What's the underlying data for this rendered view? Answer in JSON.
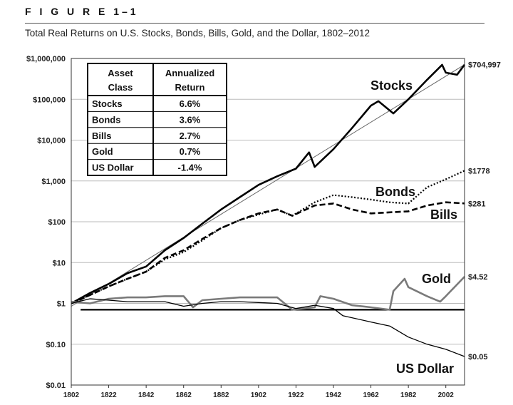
{
  "figure_label": "F I G U R E   1–1",
  "title": "Total Real Returns on U.S. Stocks, Bonds, Bills, Gold, and the Dollar, 1802–2012",
  "chart_data": {
    "type": "line",
    "title": "Total Real Returns on U.S. Stocks, Bonds, Bills, Gold, and the Dollar, 1802–2012",
    "yscale": "log",
    "ylim": [
      0.01,
      1000000
    ],
    "xlim": [
      1802,
      2012
    ],
    "y_ticks": [
      {
        "value": 1000000,
        "label": "$1,000,000"
      },
      {
        "value": 100000,
        "label": "$100,000"
      },
      {
        "value": 10000,
        "label": "$10,000"
      },
      {
        "value": 1000,
        "label": "$1,000"
      },
      {
        "value": 100,
        "label": "$100"
      },
      {
        "value": 10,
        "label": "$10"
      },
      {
        "value": 1,
        "label": "$1"
      },
      {
        "value": 0.1,
        "label": "$0.10"
      },
      {
        "value": 0.01,
        "label": "$0.01"
      }
    ],
    "x_ticks": [
      "1802",
      "1822",
      "1842",
      "1862",
      "1882",
      "1902",
      "1922",
      "1942",
      "1962",
      "1982",
      "2002"
    ],
    "grid": true,
    "table": {
      "headers": [
        "Asset Class",
        "Annualized Return"
      ],
      "rows": [
        [
          "Stocks",
          "6.6%"
        ],
        [
          "Bonds",
          "3.6%"
        ],
        [
          "Bills",
          "2.7%"
        ],
        [
          "Gold",
          "0.7%"
        ],
        [
          "US Dollar",
          "-1.4%"
        ]
      ]
    },
    "series": [
      {
        "name": "Stocks",
        "end_label": "$704,997",
        "style": "thick-solid",
        "x": [
          1802,
          1812,
          1822,
          1832,
          1842,
          1852,
          1862,
          1872,
          1882,
          1892,
          1902,
          1912,
          1922,
          1929,
          1932,
          1942,
          1952,
          1962,
          1966,
          1974,
          1982,
          1992,
          2000,
          2002,
          2008,
          2012
        ],
        "y": [
          1,
          1.8,
          3,
          5.5,
          8,
          20,
          40,
          90,
          200,
          400,
          800,
          1300,
          2000,
          5000,
          2200,
          6000,
          20000,
          70000,
          90000,
          45000,
          100000,
          300000,
          700000,
          450000,
          400000,
          704997
        ]
      },
      {
        "name": "Bonds",
        "end_label": "$1778",
        "style": "dotted",
        "x": [
          1802,
          1812,
          1822,
          1832,
          1842,
          1852,
          1862,
          1872,
          1882,
          1892,
          1902,
          1912,
          1920,
          1932,
          1942,
          1952,
          1962,
          1972,
          1982,
          1992,
          2002,
          2012
        ],
        "y": [
          1,
          1.6,
          2.6,
          4,
          6,
          12,
          18,
          35,
          70,
          110,
          150,
          200,
          140,
          300,
          450,
          400,
          350,
          300,
          280,
          700,
          1100,
          1778
        ]
      },
      {
        "name": "Bills",
        "end_label": "$281",
        "style": "dashed",
        "x": [
          1802,
          1812,
          1822,
          1832,
          1842,
          1852,
          1862,
          1872,
          1882,
          1892,
          1902,
          1912,
          1920,
          1932,
          1942,
          1952,
          1962,
          1972,
          1982,
          1992,
          2002,
          2012
        ],
        "y": [
          1,
          1.6,
          2.6,
          4,
          6,
          13,
          20,
          38,
          70,
          110,
          160,
          200,
          140,
          250,
          280,
          200,
          160,
          170,
          180,
          250,
          300,
          281
        ]
      },
      {
        "name": "Gold",
        "end_label": "$4.52",
        "style": "gray-solid",
        "x": [
          1802,
          1812,
          1822,
          1832,
          1842,
          1852,
          1862,
          1867,
          1872,
          1882,
          1892,
          1902,
          1912,
          1920,
          1932,
          1935,
          1942,
          1952,
          1962,
          1972,
          1974,
          1980,
          1982,
          1992,
          1999,
          2002,
          2012
        ],
        "y": [
          1.1,
          1.0,
          1.3,
          1.4,
          1.4,
          1.5,
          1.5,
          0.8,
          1.2,
          1.3,
          1.4,
          1.4,
          1.4,
          0.7,
          0.8,
          1.5,
          1.3,
          0.9,
          0.8,
          0.7,
          2,
          4,
          2.5,
          1.5,
          1.1,
          1.5,
          4.52
        ]
      },
      {
        "name": "US Dollar",
        "end_label": "$0.05",
        "style": "thin-solid",
        "x": [
          1802,
          1812,
          1822,
          1832,
          1842,
          1852,
          1862,
          1872,
          1882,
          1892,
          1902,
          1912,
          1922,
          1932,
          1942,
          1947,
          1962,
          1972,
          1982,
          1992,
          2002,
          2012
        ],
        "y": [
          1.0,
          1.3,
          1.2,
          1.1,
          1.1,
          1.1,
          0.85,
          1.0,
          1.1,
          1.1,
          1.05,
          1.0,
          0.75,
          0.9,
          0.75,
          0.5,
          0.35,
          0.28,
          0.15,
          0.1,
          0.075,
          0.05
        ]
      }
    ],
    "reference_line": {
      "value": 0.7,
      "from": 1807,
      "to": 2012
    }
  }
}
